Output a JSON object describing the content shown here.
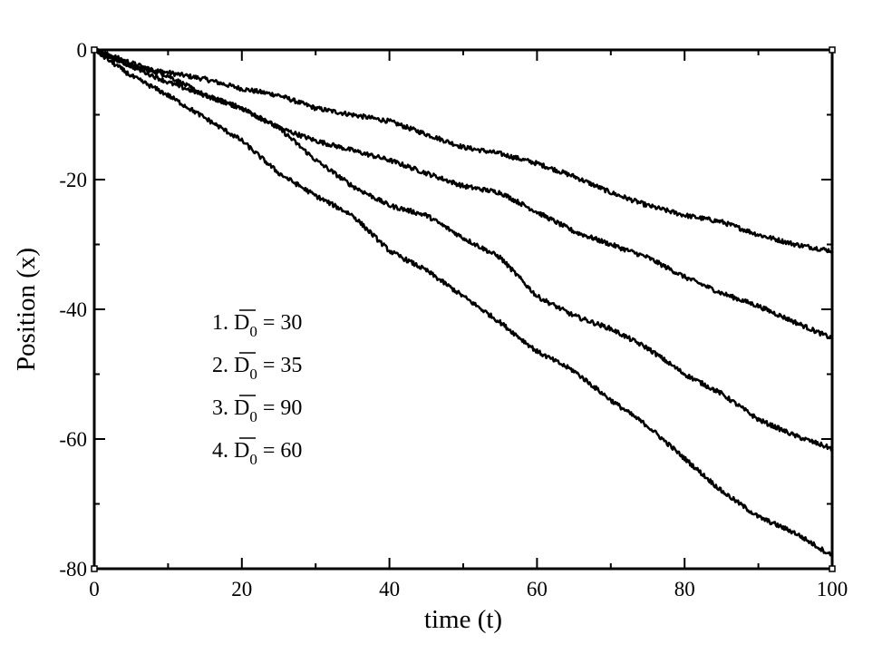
{
  "chart_data": {
    "type": "line",
    "xlabel": "time (t)",
    "ylabel": "Position (x)",
    "xlim": [
      0,
      100
    ],
    "ylim": [
      -80,
      0
    ],
    "xticks": [
      "0",
      "20",
      "40",
      "60",
      "80",
      "100"
    ],
    "yticks": [
      "0",
      "-20",
      "-40",
      "-60",
      "-80"
    ],
    "grid": false,
    "legend": {
      "placement": "inside-lower-left",
      "entries": [
        {
          "index": "1.",
          "symbol": "D",
          "subscript": "0",
          "value": "= 30"
        },
        {
          "index": "2.",
          "symbol": "D",
          "subscript": "0",
          "value": "= 35"
        },
        {
          "index": "3.",
          "symbol": "D",
          "subscript": "0",
          "value": "= 90"
        },
        {
          "index": "4.",
          "symbol": "D",
          "subscript": "0",
          "value": "= 60"
        }
      ]
    },
    "line_color": "#000000",
    "series": [
      {
        "x": [
          0,
          5,
          10,
          15,
          20,
          25,
          30,
          35,
          40,
          45,
          50,
          55,
          60,
          65,
          70,
          75,
          80,
          85,
          90,
          95,
          100
        ],
        "values": [
          0,
          -2.5,
          -3.5,
          -4.5,
          -6,
          -7,
          -9,
          -10,
          -11,
          -13,
          -15,
          -16,
          -17.5,
          -19.5,
          -22,
          -24,
          -25.5,
          -26.5,
          -28.5,
          -30,
          -31
        ]
      },
      {
        "x": [
          0,
          5,
          10,
          15,
          20,
          25,
          30,
          35,
          40,
          45,
          50,
          55,
          60,
          65,
          70,
          75,
          80,
          85,
          90,
          95,
          100
        ],
        "values": [
          0,
          -2,
          -4,
          -7,
          -9,
          -12,
          -14,
          -15.5,
          -17,
          -19,
          -21,
          -22,
          -25,
          -28,
          -30,
          -32,
          -35,
          -37.5,
          -39.5,
          -42,
          -44.5
        ]
      },
      {
        "x": [
          0,
          5,
          10,
          15,
          20,
          25,
          30,
          35,
          40,
          45,
          50,
          55,
          60,
          65,
          70,
          75,
          80,
          85,
          90,
          95,
          100
        ],
        "values": [
          0,
          -2.5,
          -5,
          -7,
          -9,
          -12,
          -17,
          -21,
          -24,
          -25.5,
          -29,
          -32,
          -38,
          -41,
          -43,
          -46,
          -50,
          -53,
          -57,
          -59.5,
          -61.5
        ]
      },
      {
        "x": [
          0,
          5,
          10,
          15,
          20,
          25,
          30,
          35,
          40,
          45,
          50,
          55,
          60,
          65,
          70,
          75,
          80,
          85,
          90,
          95,
          100
        ],
        "values": [
          0,
          -4,
          -7,
          -10.5,
          -14,
          -19,
          -22.5,
          -25.5,
          -31,
          -34,
          -38,
          -42,
          -46.5,
          -49.5,
          -54,
          -58,
          -63,
          -68,
          -72,
          -74.5,
          -78
        ]
      }
    ]
  }
}
